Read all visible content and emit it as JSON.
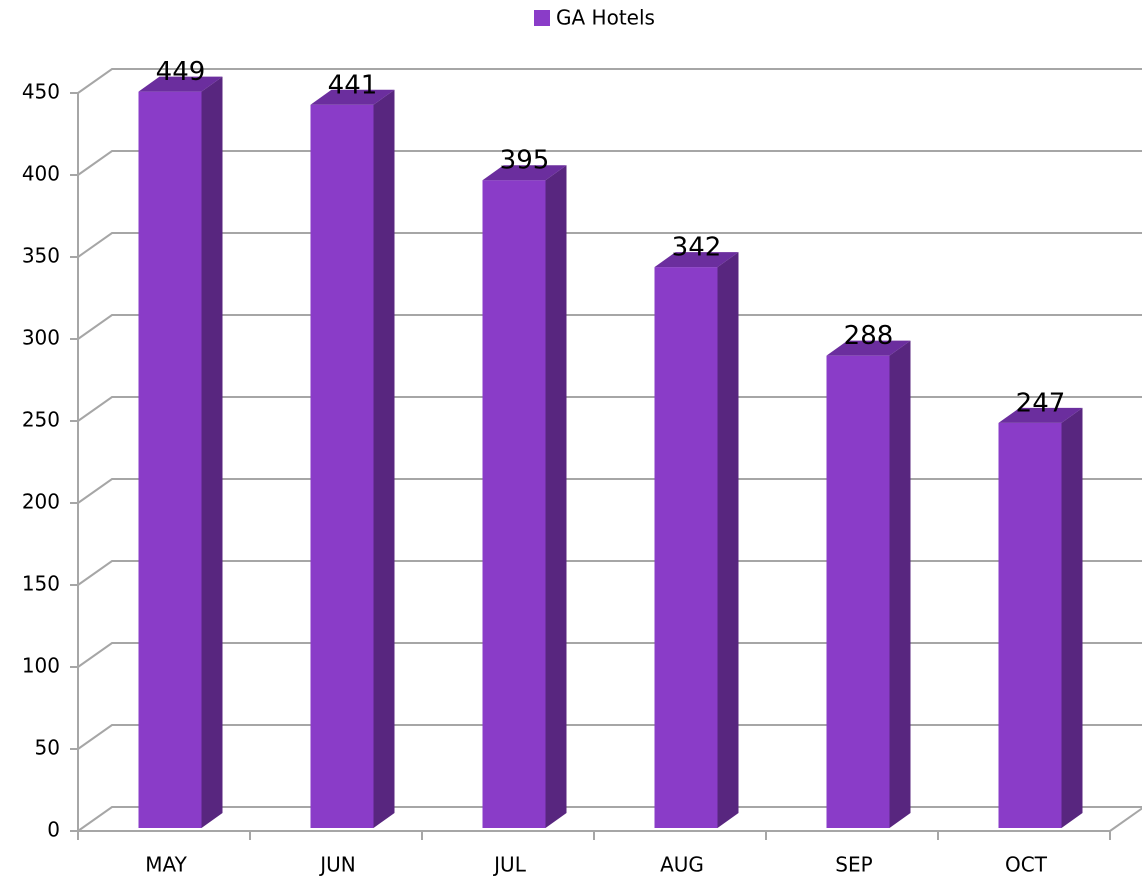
{
  "chart_data": {
    "type": "bar",
    "categories": [
      "MAY",
      "JUN",
      "JUL",
      "AUG",
      "SEP",
      "OCT"
    ],
    "series": [
      {
        "name": "GA Hotels",
        "color": "#8a3cc8",
        "values": [
          449,
          441,
          395,
          342,
          288,
          247
        ]
      }
    ],
    "ylim": [
      0,
      450
    ],
    "yticks": [
      0,
      50,
      100,
      150,
      200,
      250,
      300,
      350,
      400,
      450
    ],
    "grid": true,
    "legend": "top"
  }
}
